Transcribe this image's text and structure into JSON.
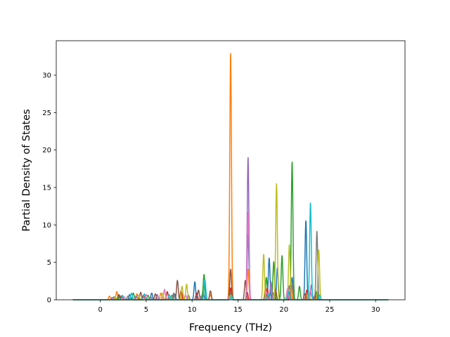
{
  "chart_data": {
    "type": "line",
    "xlabel": "Frequency (THz)",
    "ylabel": "Partial Density of States",
    "xlim": [
      -4.8,
      33.2
    ],
    "ylim": [
      0,
      34.6
    ],
    "xticks": [
      0,
      5,
      10,
      15,
      20,
      25,
      30
    ],
    "yticks": [
      0,
      5,
      10,
      15,
      20,
      25,
      30
    ],
    "grid": false,
    "legend": "none",
    "x_range": [
      -3.0,
      31.4
    ],
    "peak_width": 0.09,
    "series": [
      {
        "color": "#1f77b4",
        "peaks": [
          [
            1.5,
            0.4
          ],
          [
            3.2,
            0.7
          ],
          [
            5.6,
            0.9
          ],
          [
            8.1,
            0.8
          ],
          [
            10.3,
            2.4
          ],
          [
            11.2,
            1.2
          ],
          [
            14.2,
            1.5
          ],
          [
            16.1,
            8.9
          ],
          [
            18.4,
            5.6
          ],
          [
            19.3,
            4.3
          ],
          [
            20.9,
            3.0
          ],
          [
            22.4,
            10.6
          ],
          [
            23.5,
            1.0
          ]
        ]
      },
      {
        "color": "#ff7f0e",
        "peaks": [
          [
            1.0,
            0.5
          ],
          [
            1.8,
            1.1
          ],
          [
            4.0,
            0.8
          ],
          [
            6.6,
            0.9
          ],
          [
            9.0,
            0.7
          ],
          [
            12.0,
            0.7
          ],
          [
            14.2,
            33.1
          ],
          [
            16.1,
            4.1
          ],
          [
            18.0,
            1.7
          ],
          [
            20.8,
            2.5
          ],
          [
            22.6,
            0.9
          ]
        ]
      },
      {
        "color": "#2ca02c",
        "peaks": [
          [
            2.1,
            0.6
          ],
          [
            3.6,
            0.9
          ],
          [
            5.2,
            0.6
          ],
          [
            7.8,
            0.6
          ],
          [
            11.3,
            3.4
          ],
          [
            14.2,
            0.9
          ],
          [
            18.1,
            3.0
          ],
          [
            18.9,
            5.1
          ],
          [
            19.8,
            5.9
          ],
          [
            20.9,
            18.5
          ],
          [
            21.7,
            1.8
          ],
          [
            23.6,
            1.2
          ]
        ]
      },
      {
        "color": "#d62728",
        "peaks": [
          [
            2.3,
            0.5
          ],
          [
            4.7,
            0.6
          ],
          [
            7.3,
            1.1
          ],
          [
            8.8,
            1.2
          ],
          [
            10.5,
            0.9
          ],
          [
            14.2,
            1.6
          ],
          [
            16.0,
            1.0
          ],
          [
            18.2,
            1.5
          ],
          [
            20.7,
            1.2
          ],
          [
            22.5,
            1.3
          ],
          [
            23.4,
            0.6
          ]
        ]
      },
      {
        "color": "#9467bd",
        "peaks": [
          [
            1.3,
            0.3
          ],
          [
            3.9,
            0.5
          ],
          [
            6.2,
            0.7
          ],
          [
            9.6,
            0.6
          ],
          [
            14.3,
            0.8
          ],
          [
            16.1,
            19.1
          ],
          [
            18.6,
            2.4
          ],
          [
            20.6,
            1.9
          ],
          [
            23.0,
            2.0
          ]
        ]
      },
      {
        "color": "#8c564b",
        "peaks": [
          [
            2.0,
            0.7
          ],
          [
            4.4,
            1.0
          ],
          [
            6.0,
            0.8
          ],
          [
            8.4,
            2.6
          ],
          [
            10.7,
            1.3
          ],
          [
            12.0,
            1.2
          ],
          [
            14.2,
            4.1
          ],
          [
            15.8,
            2.6
          ],
          [
            19.1,
            1.4
          ],
          [
            22.3,
            0.8
          ]
        ]
      },
      {
        "color": "#e377c2",
        "peaks": [
          [
            2.6,
            0.4
          ],
          [
            5.0,
            0.7
          ],
          [
            7.0,
            1.4
          ],
          [
            9.3,
            0.6
          ],
          [
            14.1,
            0.5
          ],
          [
            16.1,
            11.7
          ],
          [
            18.1,
            1.1
          ],
          [
            20.4,
            1.5
          ],
          [
            22.9,
            1.2
          ]
        ]
      },
      {
        "color": "#7f7f7f",
        "peaks": [
          [
            3.0,
            0.5
          ],
          [
            5.5,
            0.4
          ],
          [
            8.0,
            0.9
          ],
          [
            11.0,
            0.5
          ],
          [
            14.2,
            0.7
          ],
          [
            18.8,
            1.0
          ],
          [
            20.9,
            2.0
          ],
          [
            23.6,
            9.2
          ]
        ]
      },
      {
        "color": "#bcbd22",
        "peaks": [
          [
            1.6,
            0.4
          ],
          [
            4.2,
            0.6
          ],
          [
            6.8,
            0.9
          ],
          [
            8.9,
            1.8
          ],
          [
            9.4,
            2.1
          ],
          [
            14.2,
            0.6
          ],
          [
            17.8,
            6.1
          ],
          [
            19.2,
            15.5
          ],
          [
            20.6,
            7.4
          ],
          [
            22.7,
            0.9
          ],
          [
            23.8,
            6.7
          ]
        ]
      },
      {
        "color": "#17becf",
        "peaks": [
          [
            2.4,
            0.6
          ],
          [
            3.4,
            0.9
          ],
          [
            4.8,
            0.8
          ],
          [
            7.5,
            0.7
          ],
          [
            11.4,
            2.7
          ],
          [
            14.3,
            0.5
          ],
          [
            18.3,
            0.8
          ],
          [
            20.5,
            1.1
          ],
          [
            22.9,
            13.0
          ],
          [
            23.9,
            0.6
          ]
        ]
      }
    ]
  }
}
